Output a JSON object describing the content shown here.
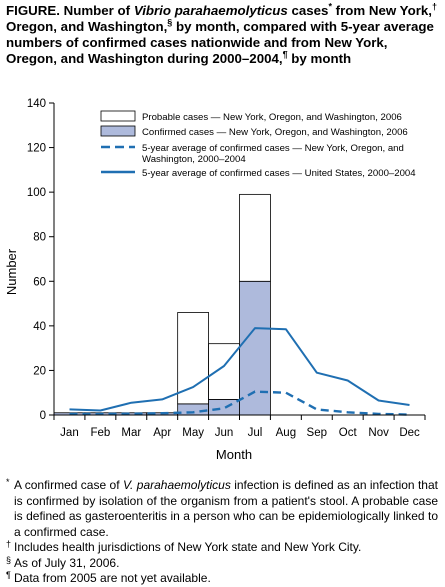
{
  "title": {
    "prefix": "FIGURE. Number of ",
    "organism": "Vibrio parahaemolyticus",
    "part1": " cases",
    "mark1": "*",
    "part2": " from New York,",
    "mark2": "†",
    "part3": " Oregon, and Washington,",
    "mark3": "§",
    "part4": " by month, compared with 5-year average numbers of confirmed cases nationwide and from New York, Oregon, and Washington during 2000–2004,",
    "mark4": "¶",
    "part5": " by month"
  },
  "colors": {
    "confirmed_fill": "#aebadc",
    "probable_fill": "#ffffff",
    "line_color": "#1f6fb2",
    "axis": "#000000"
  },
  "chart_data": {
    "type": "bar",
    "xlabel": "Month",
    "ylabel": "Number",
    "ylim": [
      0,
      140
    ],
    "yticks": [
      0,
      20,
      40,
      60,
      80,
      100,
      120,
      140
    ],
    "categories": [
      "Jan",
      "Feb",
      "Mar",
      "Apr",
      "May",
      "Jun",
      "Jul",
      "Aug",
      "Sep",
      "Oct",
      "Nov",
      "Dec"
    ],
    "bar_series": [
      {
        "name": "Probable cases — New York, Oregon, and Washington, 2006",
        "style": "probable",
        "values": [
          0,
          0,
          0,
          0,
          41,
          25,
          39,
          null,
          null,
          null,
          null,
          null
        ]
      },
      {
        "name": "Confirmed cases — New York, Oregon, and Washington, 2006",
        "style": "confirmed",
        "values": [
          1,
          1,
          1,
          1,
          5,
          7,
          60,
          null,
          null,
          null,
          null,
          null
        ]
      }
    ],
    "line_series": [
      {
        "name": "5-year average of confirmed cases — New York, Oregon, and Washington, 2000–2004",
        "style": "dashed",
        "values": [
          0.5,
          0.5,
          0.6,
          0.8,
          1.2,
          3,
          10.5,
          10,
          2.5,
          1.2,
          0.5,
          0.2
        ]
      },
      {
        "name": "5-year average of confirmed cases — United States, 2000–2004",
        "style": "solid",
        "values": [
          2.5,
          2,
          5.5,
          7,
          12.5,
          22,
          39,
          38.5,
          19,
          15.5,
          6.5,
          4.5
        ]
      }
    ],
    "legend": {
      "placement": "top-right",
      "entries": [
        {
          "label": "Probable cases — New York, Oregon, and Washington, 2006",
          "kind": "box-probable"
        },
        {
          "label": "Confirmed cases — New York, Oregon, and Washington, 2006",
          "kind": "box-confirmed"
        },
        {
          "label": "5-year average of confirmed cases — New York, Oregon, and",
          "label2": "Washington, 2000–2004",
          "kind": "dashed"
        },
        {
          "label": "5-year average of confirmed cases — United States, 2000–2004",
          "kind": "solid"
        }
      ]
    },
    "grid": false
  },
  "footnotes": [
    {
      "mark": "*",
      "pre": "A confirmed case of ",
      "ital": "V. parahaemolyticus",
      "post": " infection is defined as an infection that is confirmed by isolation of the organism from a patient's stool. A probable case is defined as gasteroenteritis in a person who can be epidemiologically linked to a confirmed case."
    },
    {
      "mark": "†",
      "text": "Includes health jurisdictions of New York state and New York City."
    },
    {
      "mark": "§",
      "text": "As of July 31, 2006."
    },
    {
      "mark": "¶",
      "text": "Data from 2005 are not yet available."
    }
  ]
}
